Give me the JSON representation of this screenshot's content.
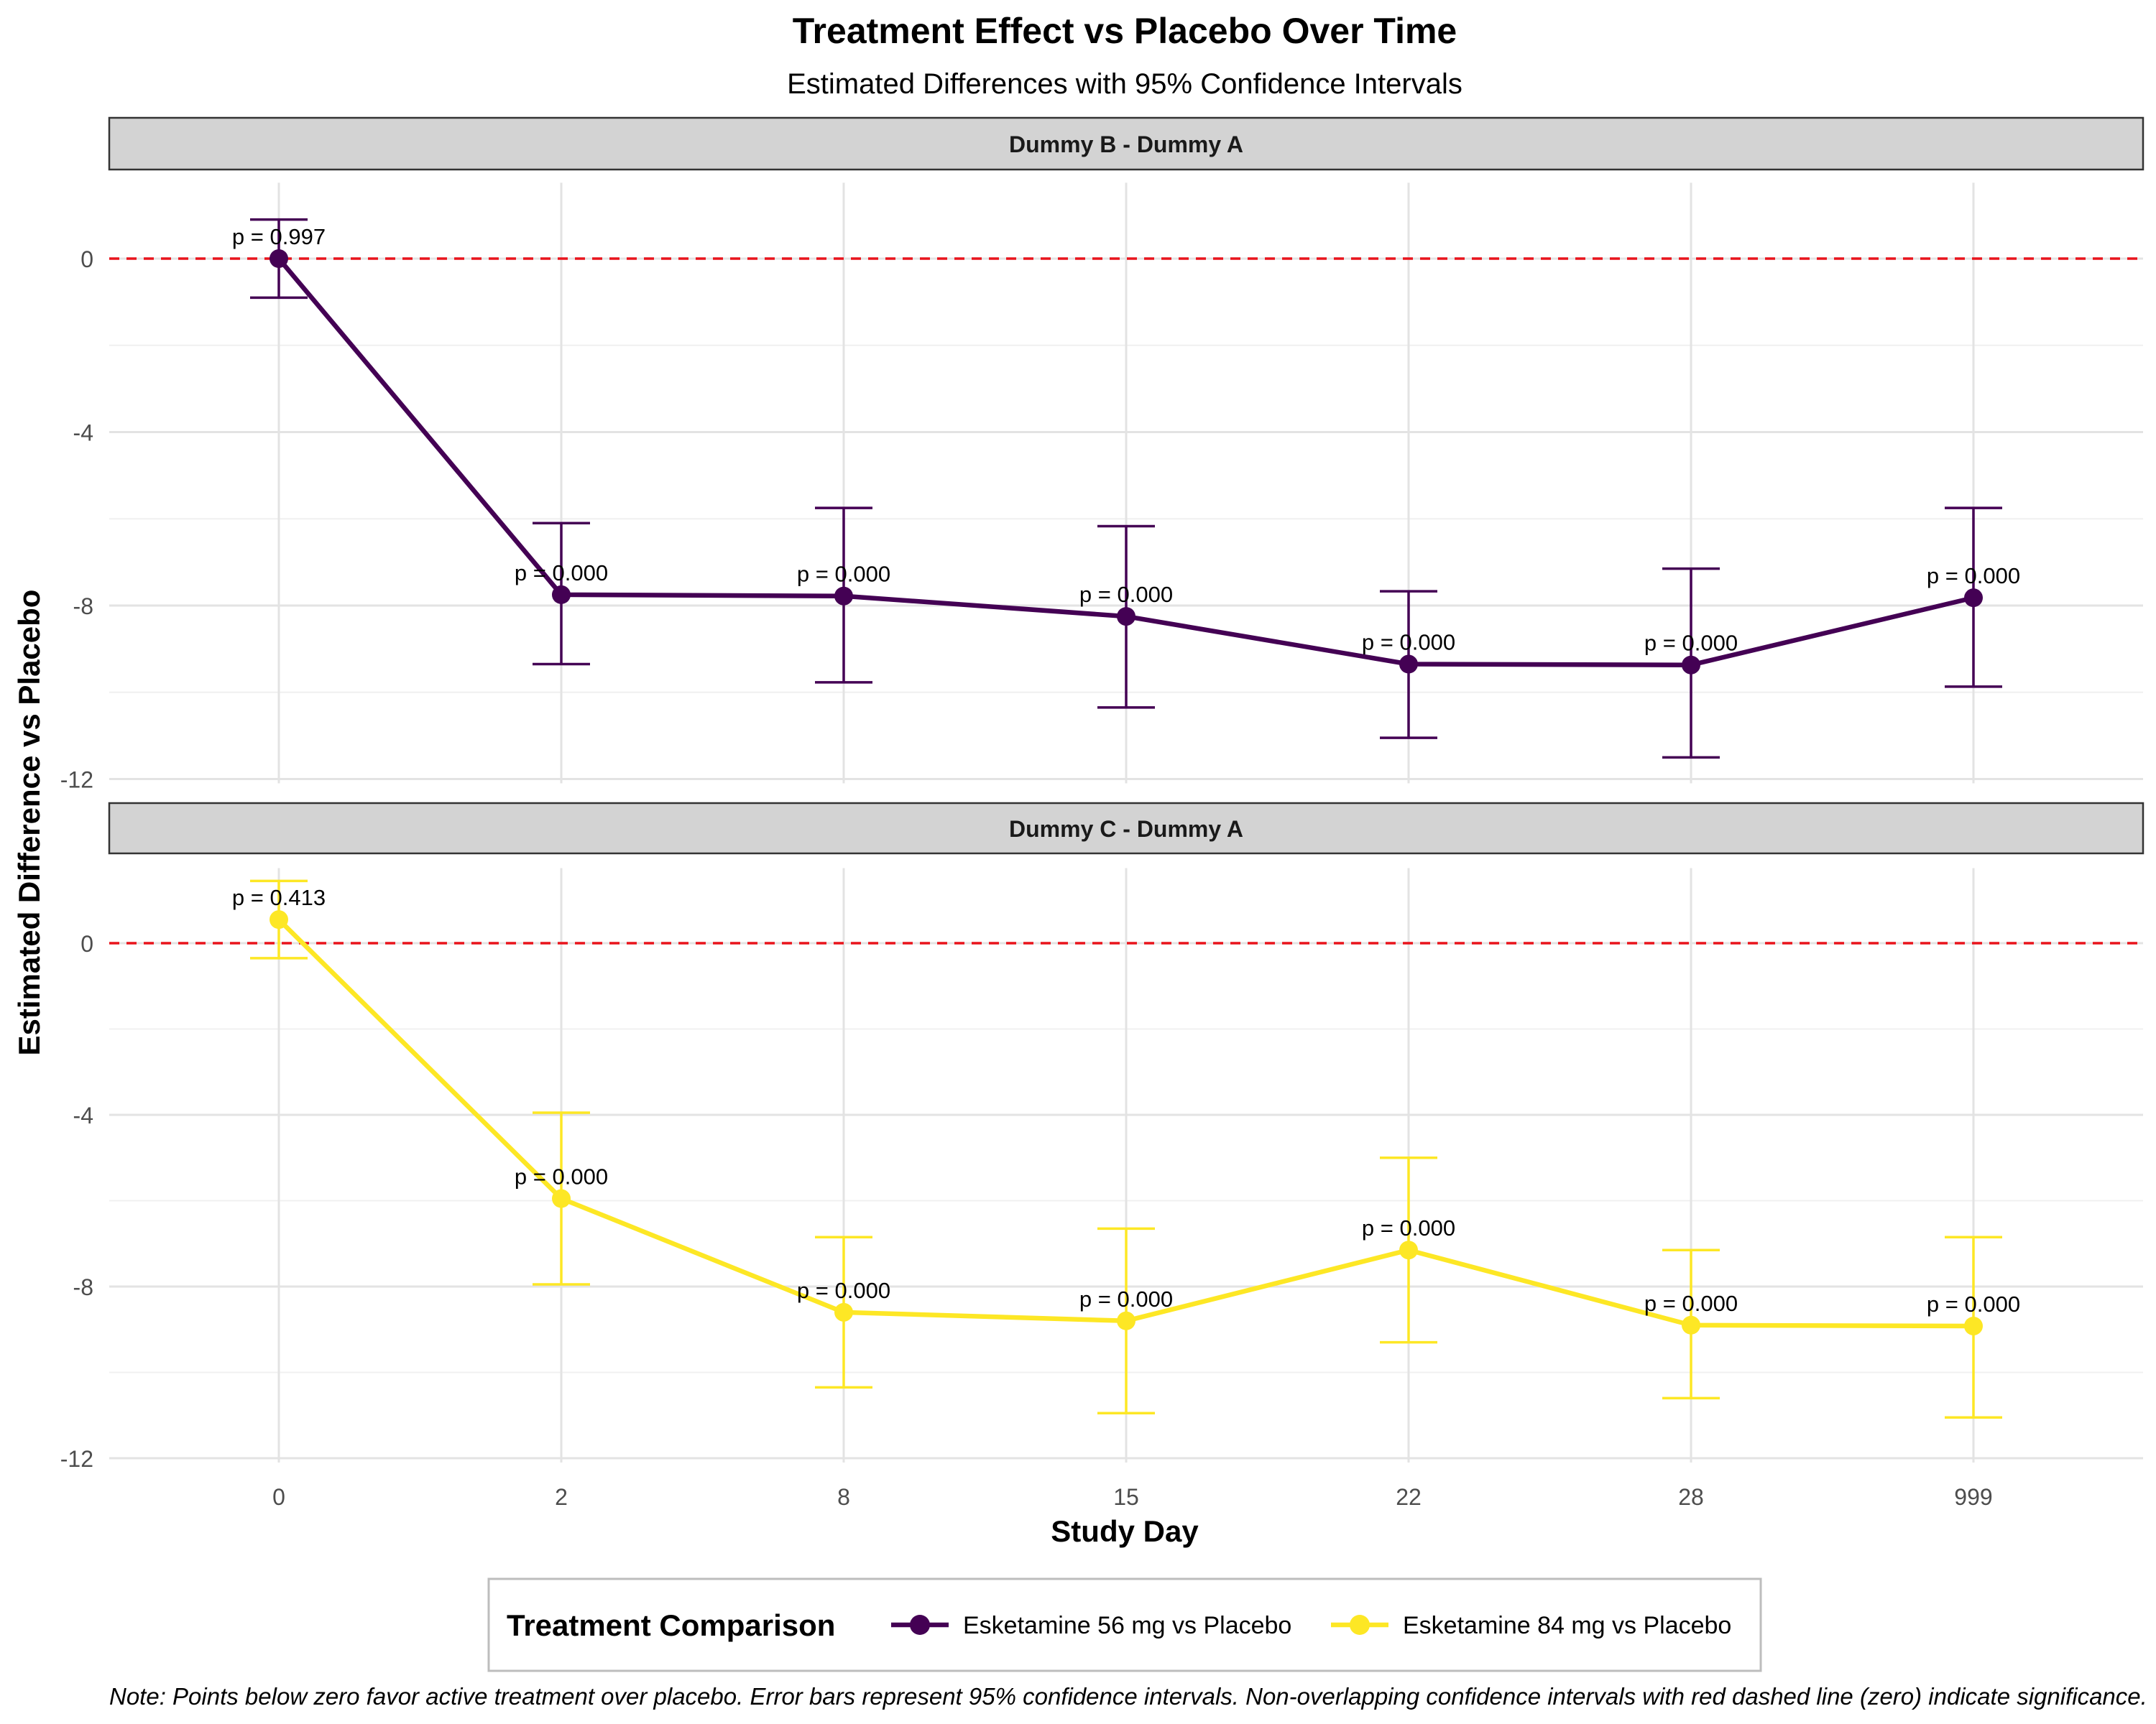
{
  "chart_data": {
    "type": "line",
    "title": "Treatment Effect vs Placebo Over Time",
    "subtitle": "Estimated Differences with 95% Confidence Intervals",
    "xlabel": "Study Day",
    "ylabel": "Estimated Difference vs Placebo",
    "categories": [
      "0",
      "2",
      "8",
      "15",
      "22",
      "28",
      "999"
    ],
    "yticks": [
      0,
      -4,
      -8,
      -12
    ],
    "ylim": [
      -12.1,
      1.75
    ],
    "grid": true,
    "reference_line": {
      "y": 0,
      "color": "#e8141c",
      "style": "dashed"
    },
    "legend": {
      "title": "Treatment Comparison",
      "position": "bottom"
    },
    "panels": [
      {
        "strip": "Dummy B - Dummy A",
        "series_name": "Esketamine 56 mg vs Placebo",
        "color": "#440154",
        "values": [
          0.0,
          -7.75,
          -7.78,
          -8.25,
          -9.35,
          -9.37,
          -7.82
        ],
        "ci_low": [
          -0.9,
          -9.35,
          -9.77,
          -10.35,
          -11.05,
          -11.5,
          -9.87
        ],
        "ci_high": [
          0.9,
          -6.1,
          -5.75,
          -6.17,
          -7.67,
          -7.15,
          -5.75
        ],
        "p_labels": [
          "p = 0.997",
          "p = 0.000",
          "p = 0.000",
          "p = 0.000",
          "p = 0.000",
          "p = 0.000",
          "p = 0.000"
        ]
      },
      {
        "strip": "Dummy C - Dummy A",
        "series_name": "Esketamine 84 mg vs Placebo",
        "color": "#fde725",
        "values": [
          0.55,
          -5.95,
          -8.6,
          -8.8,
          -7.15,
          -8.9,
          -8.92
        ],
        "ci_low": [
          -0.35,
          -7.95,
          -10.35,
          -10.95,
          -9.3,
          -10.6,
          -11.05
        ],
        "ci_high": [
          1.45,
          -3.95,
          -6.85,
          -6.65,
          -5.0,
          -7.15,
          -6.85
        ],
        "p_labels": [
          "p = 0.413",
          "p = 0.000",
          "p = 0.000",
          "p = 0.000",
          "p = 0.000",
          "p = 0.000",
          "p = 0.000"
        ]
      }
    ],
    "series": [
      {
        "name": "Esketamine 56 mg vs Placebo",
        "color": "#440154"
      },
      {
        "name": "Esketamine 84 mg vs Placebo",
        "color": "#fde725"
      }
    ],
    "note": "Note: Points below zero favor active treatment over placebo. Error bars represent 95% confidence intervals. Non-overlapping confidence intervals with red dashed line (zero) indicate significance."
  }
}
